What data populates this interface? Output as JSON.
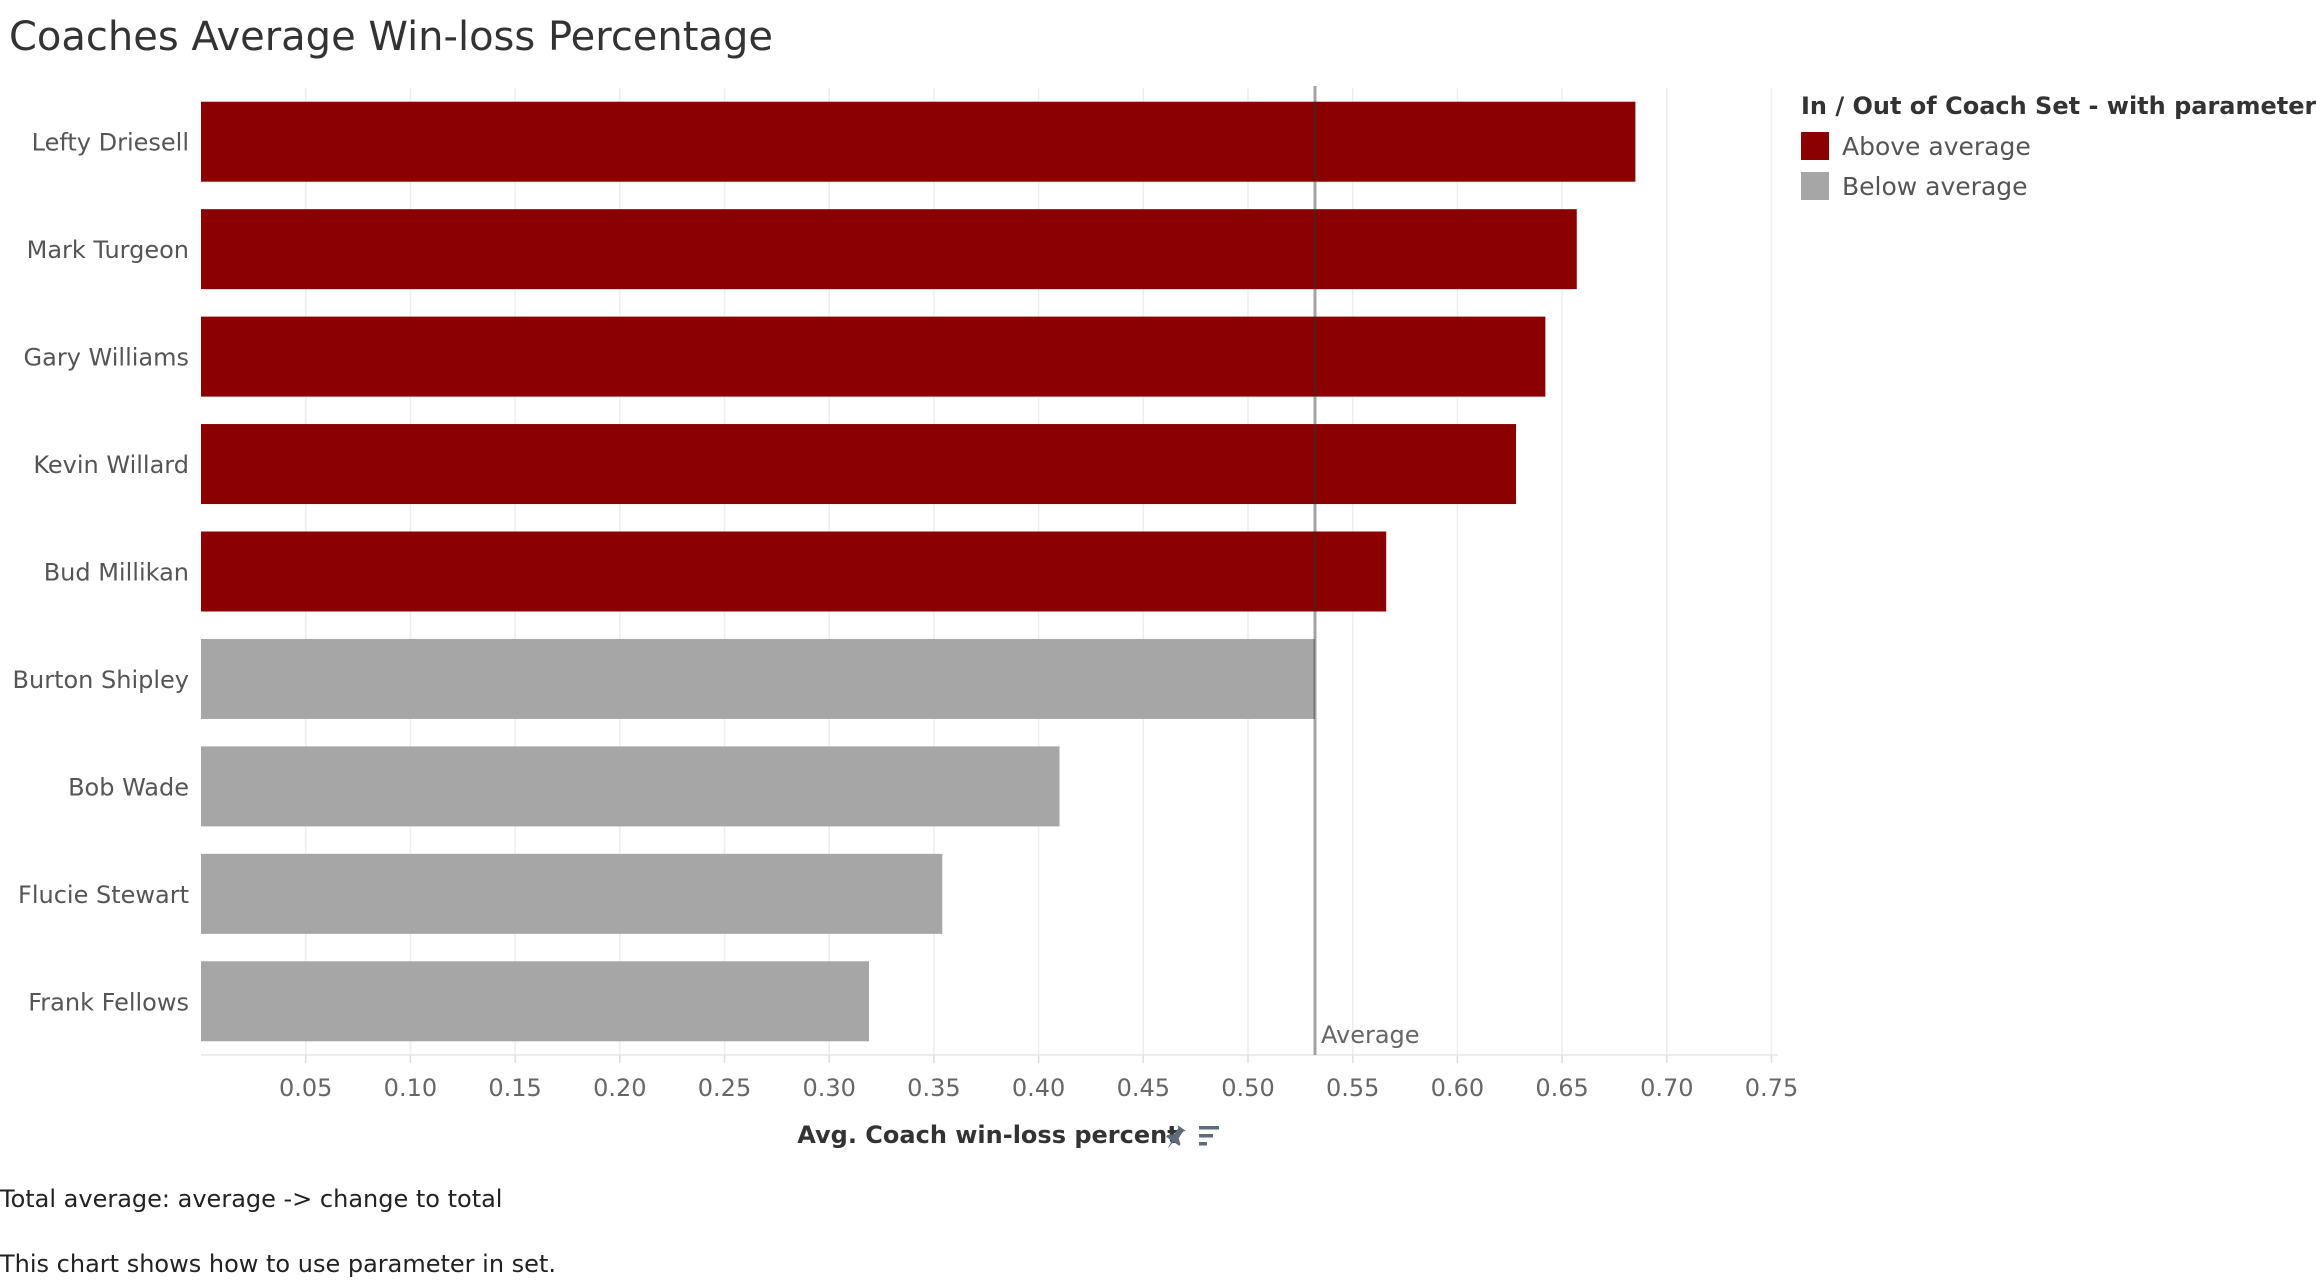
{
  "title": "Coaches Average Win-loss Percentage",
  "chart_data": {
    "type": "bar",
    "orientation": "horizontal",
    "title": "Coaches Average Win-loss Percentage",
    "categories": [
      "Lefty Driesell",
      "Mark Turgeon",
      "Gary Williams",
      "Kevin Willard",
      "Bud Millikan",
      "Burton Shipley",
      "Bob Wade",
      "Flucie Stewart",
      "Frank Fellows"
    ],
    "values": [
      0.685,
      0.657,
      0.642,
      0.628,
      0.566,
      0.532,
      0.41,
      0.354,
      0.319
    ],
    "groups": [
      "Above average",
      "Above average",
      "Above average",
      "Above average",
      "Above average",
      "Below average",
      "Below average",
      "Below average",
      "Below average"
    ],
    "xlabel": "Avg. Coach win-loss percent",
    "ylabel": "",
    "xlim": [
      0,
      0.75
    ],
    "xticks": [
      0.05,
      0.1,
      0.15,
      0.2,
      0.25,
      0.3,
      0.35,
      0.4,
      0.45,
      0.5,
      0.55,
      0.6,
      0.65,
      0.7,
      0.75
    ],
    "xtick_labels": [
      "0.05",
      "0.10",
      "0.15",
      "0.20",
      "0.25",
      "0.30",
      "0.35",
      "0.40",
      "0.45",
      "0.50",
      "0.55",
      "0.60",
      "0.65",
      "0.70",
      "0.75"
    ],
    "reference_line": {
      "label": "Average",
      "value": 0.532
    },
    "grid": true,
    "legend_position": "top-right",
    "colors": {
      "Above average": "#8b0000",
      "Below average": "#a6a6a6"
    }
  },
  "legend": {
    "title": "In / Out of Coach Set - with parameter",
    "items": [
      {
        "label": "Above average",
        "color": "#8b0000"
      },
      {
        "label": "Below average",
        "color": "#a6a6a6"
      }
    ]
  },
  "toolbar": {
    "pin_icon": "pin-icon",
    "sort_icon": "sort-icon"
  },
  "notes": {
    "total": "Total average: average -> change to total",
    "description": "This chart shows how to use parameter in set."
  }
}
